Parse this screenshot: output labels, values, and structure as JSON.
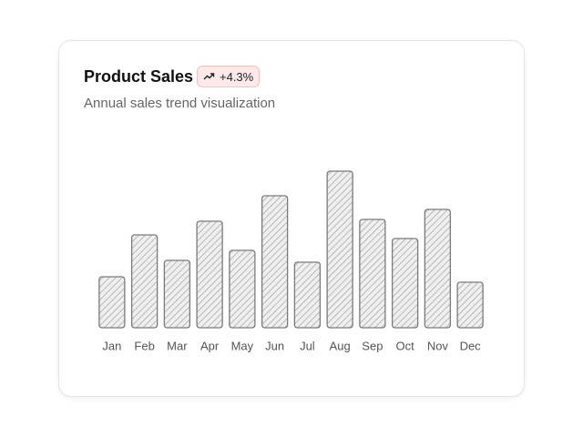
{
  "chart_data": {
    "type": "bar",
    "title": "Product Sales",
    "badge": "+4.3%",
    "subtitle": "Annual sales trend visualization",
    "categories": [
      "Jan",
      "Feb",
      "Mar",
      "Apr",
      "May",
      "Jun",
      "Jul",
      "Aug",
      "Sep",
      "Oct",
      "Nov",
      "Dec"
    ],
    "values": [
      56,
      102,
      74,
      117,
      85,
      145,
      72,
      172,
      119,
      98,
      130,
      50
    ],
    "color": "#d9d9d9",
    "ylim": [
      0,
      180
    ]
  }
}
